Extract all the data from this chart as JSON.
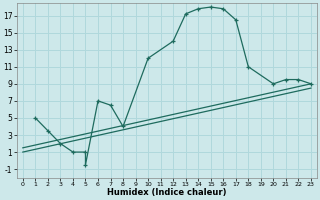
{
  "xlabel": "Humidex (Indice chaleur)",
  "xlim": [
    -0.5,
    23.5
  ],
  "ylim": [
    -2,
    18.5
  ],
  "xticks": [
    0,
    1,
    2,
    3,
    4,
    5,
    6,
    7,
    8,
    9,
    10,
    11,
    12,
    13,
    14,
    15,
    16,
    17,
    18,
    19,
    20,
    21,
    22,
    23
  ],
  "yticks": [
    -1,
    1,
    3,
    5,
    7,
    9,
    11,
    13,
    15,
    17
  ],
  "bg_color": "#cde8ea",
  "line_color": "#1e6b5e",
  "grid_color": "#b0d8dc",
  "curve1_x": [
    1,
    2,
    3,
    4,
    5,
    5,
    6,
    7,
    8,
    10,
    12,
    13,
    14,
    15,
    16,
    17,
    18,
    20,
    21,
    22,
    23
  ],
  "curve1_y": [
    5,
    3.5,
    2,
    1,
    1,
    -0.5,
    7,
    6.5,
    4,
    12,
    14,
    17.2,
    17.8,
    18.0,
    17.8,
    16.5,
    11,
    9,
    9.5,
    9.5,
    9
  ],
  "line2_x": [
    0,
    23
  ],
  "line2_y": [
    1.5,
    9.0
  ],
  "line3_x": [
    0,
    23
  ],
  "line3_y": [
    1.0,
    8.5
  ]
}
